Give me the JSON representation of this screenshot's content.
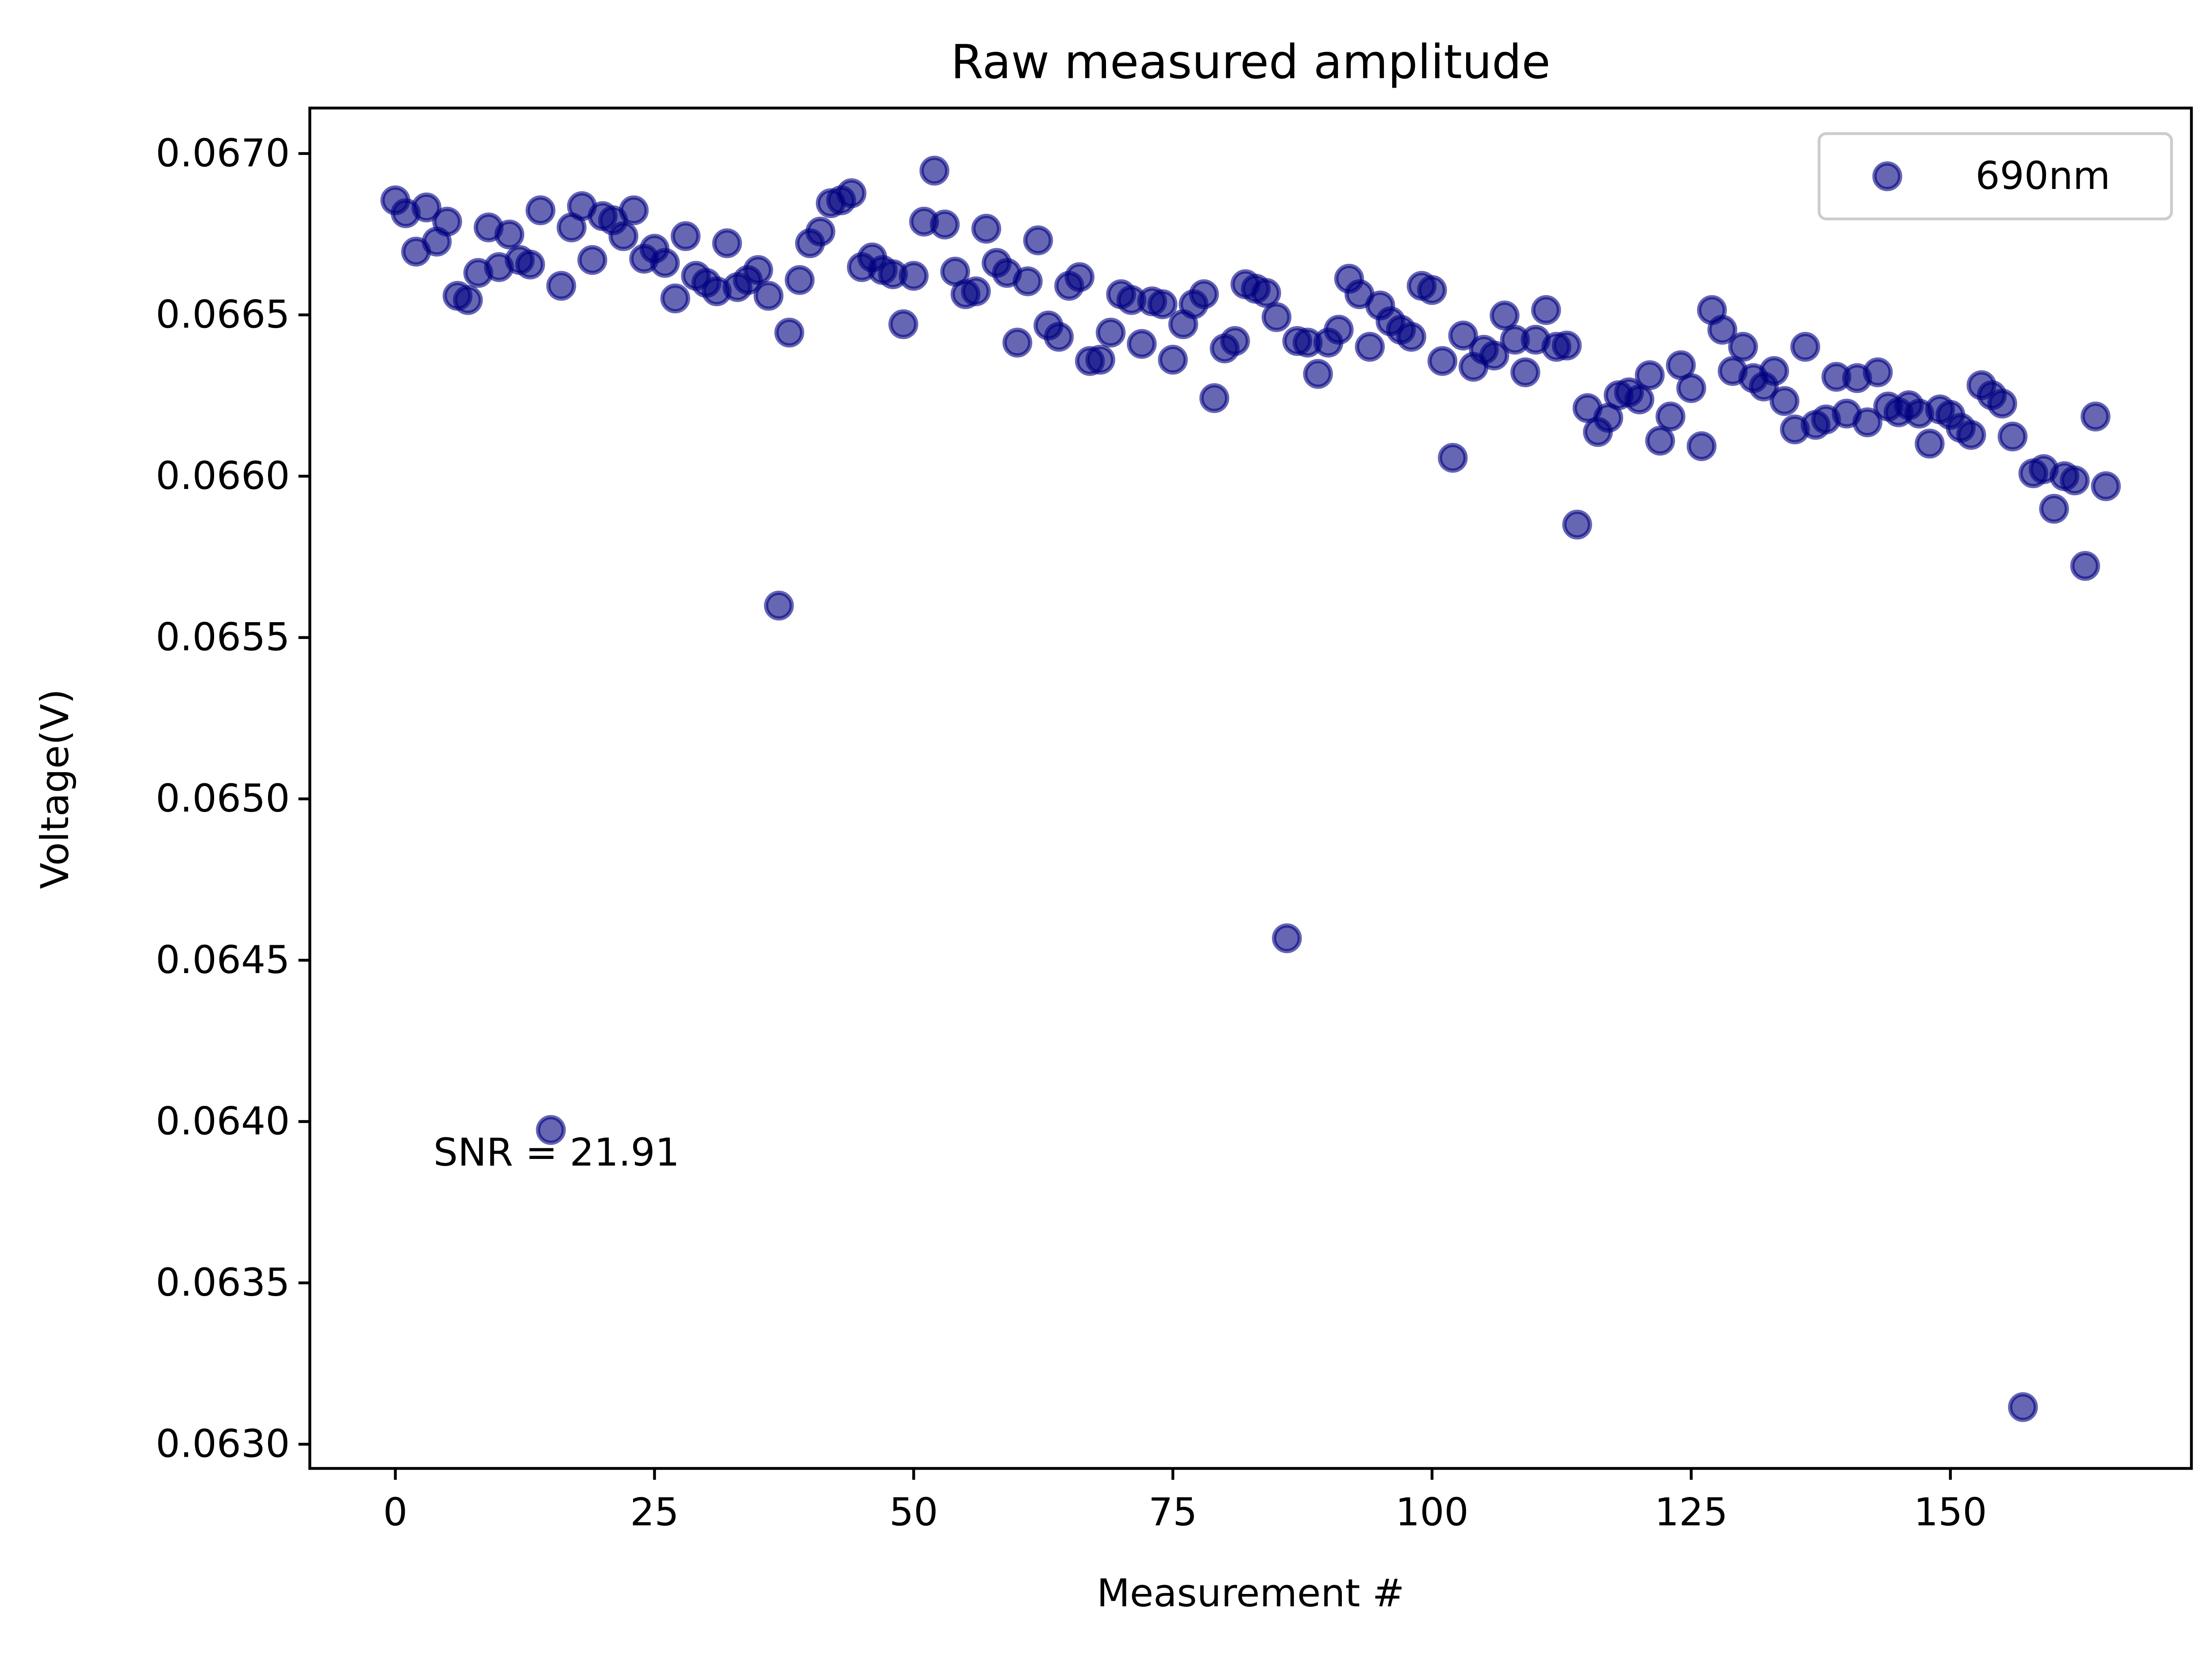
{
  "chart_data": {
    "type": "scatter",
    "title": "Raw measured amplitude",
    "x_label": "Measurement #",
    "y_label": "Voltage(V)",
    "annotation": "SNR = 21.91",
    "legend": "upper right",
    "series": [
      {
        "name": "690nm",
        "color": "#000080",
        "x": [
          0,
          1,
          2,
          3,
          4,
          5,
          6,
          7,
          8,
          9,
          10,
          11,
          12,
          13,
          14,
          15,
          16,
          17,
          18,
          19,
          20,
          21,
          22,
          23,
          24,
          25,
          26,
          27,
          28,
          29,
          30,
          31,
          32,
          33,
          34,
          35,
          36,
          37,
          38,
          39,
          40,
          41,
          42,
          43,
          44,
          45,
          46,
          47,
          48,
          49,
          50,
          51,
          52,
          53,
          54,
          55,
          56,
          57,
          58,
          59,
          60,
          61,
          62,
          63,
          64,
          65,
          66,
          67,
          68,
          69,
          70,
          71,
          72,
          73,
          74,
          75,
          76,
          77,
          78,
          79,
          80,
          81,
          82,
          83,
          84,
          85,
          86,
          87,
          88,
          89,
          90,
          91,
          92,
          93,
          94,
          95,
          96,
          97,
          98,
          99,
          100,
          101,
          102,
          103,
          104,
          105,
          106,
          107,
          108,
          109,
          110,
          111,
          112,
          113,
          114,
          115,
          116,
          117,
          118,
          119,
          120,
          121,
          122,
          123,
          124,
          125,
          126,
          127,
          128,
          129,
          130,
          131,
          132,
          133,
          134,
          135,
          136,
          137,
          138,
          139,
          140,
          141,
          142,
          143,
          144,
          145,
          146,
          147,
          148,
          149,
          150,
          151,
          152,
          153,
          154,
          155,
          156,
          157,
          158,
          159,
          160,
          161,
          162,
          163,
          164,
          165
        ],
        "values": [
          0.066855,
          0.066815,
          0.066696,
          0.066833,
          0.066727,
          0.066789,
          0.066559,
          0.066546,
          0.06663,
          0.066771,
          0.066648,
          0.066749,
          0.06667,
          0.066656,
          0.066824,
          0.063974,
          0.06659,
          0.066771,
          0.066837,
          0.06667,
          0.066806,
          0.066793,
          0.066744,
          0.066824,
          0.066674,
          0.066705,
          0.066661,
          0.066551,
          0.066744,
          0.066621,
          0.066599,
          0.066573,
          0.066722,
          0.066586,
          0.066608,
          0.066639,
          0.066559,
          0.065599,
          0.066445,
          0.066608,
          0.066722,
          0.066758,
          0.066846,
          0.066855,
          0.066877,
          0.066648,
          0.066678,
          0.066639,
          0.066626,
          0.066471,
          0.066621,
          0.066789,
          0.066947,
          0.06678,
          0.066634,
          0.066564,
          0.066573,
          0.066767,
          0.066661,
          0.06663,
          0.066414,
          0.066604,
          0.066731,
          0.066467,
          0.066432,
          0.06659,
          0.066617,
          0.066357,
          0.066361,
          0.066445,
          0.066564,
          0.066546,
          0.06641,
          0.066542,
          0.066533,
          0.066361,
          0.066471,
          0.066533,
          0.066564,
          0.066242,
          0.066396,
          0.066419,
          0.066595,
          0.066581,
          0.066568,
          0.066493,
          0.064568,
          0.066419,
          0.066414,
          0.066317,
          0.066414,
          0.066454,
          0.066612,
          0.066564,
          0.066401,
          0.066529,
          0.06648,
          0.066454,
          0.066432,
          0.06659,
          0.066577,
          0.066357,
          0.066057,
          0.066436,
          0.066339,
          0.066392,
          0.066374,
          0.066498,
          0.066423,
          0.066322,
          0.066423,
          0.066515,
          0.066401,
          0.066405,
          0.06585,
          0.066211,
          0.066137,
          0.066181,
          0.066251,
          0.06626,
          0.066238,
          0.066313,
          0.06611,
          0.066185,
          0.066344,
          0.066273,
          0.066093,
          0.066515,
          0.066454,
          0.066326,
          0.066401,
          0.066304,
          0.066278,
          0.066326,
          0.066233,
          0.066145,
          0.066401,
          0.066159,
          0.066176,
          0.066308,
          0.066194,
          0.066304,
          0.066167,
          0.066322,
          0.066216,
          0.066198,
          0.06622,
          0.066194,
          0.066101,
          0.066207,
          0.06619,
          0.06615,
          0.066128,
          0.066282,
          0.066251,
          0.066225,
          0.066123,
          0.063115,
          0.066009,
          0.066022,
          0.065899,
          0.066,
          0.065987,
          0.065722,
          0.066185,
          0.065969
        ]
      }
    ],
    "xlim": [
      -8.25,
      173.25
    ],
    "xticks": [
      0,
      25,
      50,
      75,
      100,
      125,
      150
    ],
    "ylim": [
      0.062925,
      0.067141
    ],
    "yticks": [
      {
        "value": 0.063,
        "label": "0.0630"
      },
      {
        "value": 0.0635,
        "label": "0.0635"
      },
      {
        "value": 0.064,
        "label": "0.0640"
      },
      {
        "value": 0.0645,
        "label": "0.0645"
      },
      {
        "value": 0.065,
        "label": "0.0650"
      },
      {
        "value": 0.0655,
        "label": "0.0655"
      },
      {
        "value": 0.066,
        "label": "0.0660"
      },
      {
        "value": 0.0665,
        "label": "0.0665"
      },
      {
        "value": 0.067,
        "label": "0.0670"
      }
    ]
  }
}
